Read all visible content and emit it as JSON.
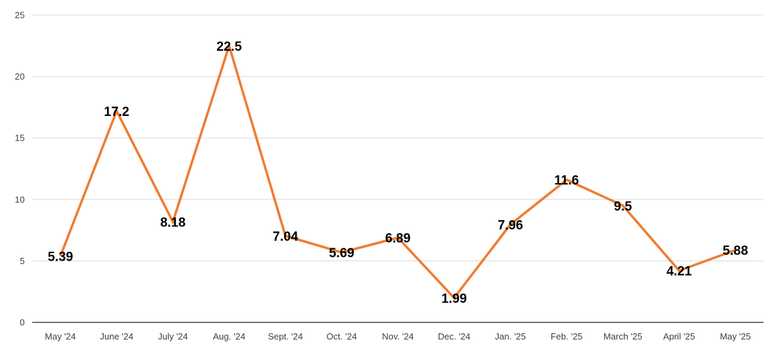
{
  "chart_data": {
    "type": "line",
    "title": "",
    "xlabel": "",
    "ylabel": "",
    "ylim": [
      0,
      25
    ],
    "yticks": [
      0,
      5,
      10,
      15,
      20,
      25
    ],
    "grid": "horizontal",
    "legend": "none",
    "categories": [
      "May '24",
      "June '24",
      "July '24",
      "Aug. '24",
      "Sept. '24",
      "Oct. '24",
      "Nov. '24",
      "Dec. '24",
      "Jan. '25",
      "Feb. '25",
      "March '25",
      "April '25",
      "May '25"
    ],
    "series": [
      {
        "values": [
          5.39,
          17.2,
          8.18,
          22.5,
          7.04,
          5.69,
          6.89,
          1.99,
          7.96,
          11.6,
          9.5,
          4.21,
          5.88
        ],
        "labels": [
          "5.39",
          "17.2",
          "8.18",
          "22.5",
          "7.04",
          "5.69",
          "6.89",
          "1.99",
          "7.96",
          "11.6",
          "9.5",
          "4.21",
          "5.88"
        ],
        "color": "#ED7D31"
      }
    ]
  }
}
